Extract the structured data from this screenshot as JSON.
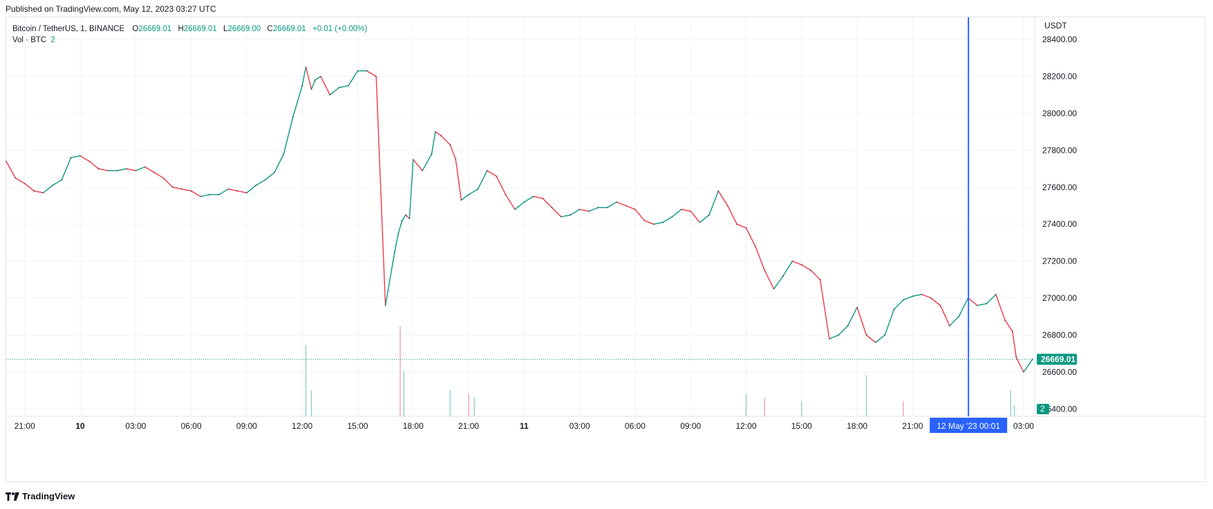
{
  "header": {
    "published": "Published on TradingView.com, May 12, 2023 03:27 UTC"
  },
  "legend": {
    "symbol": "Bitcoin / TetherUS, 1, BINANCE",
    "o_label": "O",
    "o_value": "26669.01",
    "h_label": "H",
    "h_value": "26669.01",
    "l_label": "L",
    "l_value": "26669.00",
    "c_label": "C",
    "c_value": "26669.01",
    "change": "+0.01 (+0.00%)",
    "vol_label": "Vol · BTC",
    "vol_value": "2"
  },
  "footer": {
    "brand": "TradingView"
  },
  "colors": {
    "up": "#089981",
    "down": "#f23645",
    "crosshair": "#2962ff",
    "price_line": "#089981"
  },
  "chart_data": {
    "type": "line",
    "title": "Bitcoin / TetherUS, 1, BINANCE",
    "currency_label": "USDT",
    "y_ticks": [
      26400,
      26600,
      26800,
      27000,
      27200,
      27400,
      27600,
      27800,
      28000,
      28200,
      28400
    ],
    "y_tick_labels": [
      "26400.00",
      "26600.00",
      "26800.00",
      "27000.00",
      "27200.00",
      "27400.00",
      "27600.00",
      "27800.00",
      "28000.00",
      "28200.00",
      "28400.00"
    ],
    "ylim": [
      26360,
      28520
    ],
    "x_tick_labels": [
      "21:00",
      "10",
      "03:00",
      "06:00",
      "09:00",
      "12:00",
      "15:00",
      "18:00",
      "21:00",
      "11",
      "03:00",
      "06:00",
      "09:00",
      "12:00",
      "15:00",
      "18:00",
      "21:00",
      "03:00"
    ],
    "x_tick_hours": [
      -3,
      0,
      3,
      6,
      9,
      12,
      15,
      18,
      21,
      24,
      27,
      30,
      33,
      36,
      39,
      42,
      45,
      51
    ],
    "xlim_hours": [
      -4.0,
      51.6
    ],
    "series": [
      {
        "hours": [
          -4.0,
          -3.5,
          -3.0,
          -2.5,
          -2.0,
          -1.5,
          -1.0,
          -0.5,
          0.0,
          0.5,
          1.0,
          1.5,
          2.0,
          2.5,
          3.0,
          3.5,
          4.0,
          4.5,
          5.0,
          5.5,
          6.0,
          6.5,
          7.0,
          7.5,
          8.0,
          8.5,
          9.0,
          9.5,
          10.0,
          10.5,
          11.0,
          11.5,
          12.0,
          12.2,
          12.5,
          12.7,
          13.0,
          13.5,
          14.0,
          14.5,
          15.0,
          15.5,
          16.0,
          16.5,
          17.0,
          17.2,
          17.4,
          17.6,
          17.8,
          18.0,
          18.5,
          19.0,
          19.2,
          19.5,
          20.0,
          20.3,
          20.6,
          21.0,
          21.5,
          22.0,
          22.5,
          23.0,
          23.5,
          24.0,
          24.5,
          25.0,
          25.5,
          26.0,
          26.5,
          27.0,
          27.5,
          28.0,
          28.5,
          29.0,
          29.5,
          30.0,
          30.5,
          31.0,
          31.5,
          32.0,
          32.5,
          33.0,
          33.5,
          34.0,
          34.5,
          35.0,
          35.5,
          36.0,
          36.5,
          37.0,
          37.5,
          38.0,
          38.5,
          39.0,
          39.5,
          40.0,
          40.5,
          41.0,
          41.5,
          42.0,
          42.5,
          43.0,
          43.5,
          44.0,
          44.5,
          45.0,
          45.5,
          46.0,
          46.5,
          47.0,
          47.5,
          48.0,
          48.5,
          49.0,
          49.5,
          50.0,
          50.4,
          50.6,
          51.0,
          51.5
        ],
        "close": [
          27740,
          27650,
          27620,
          27580,
          27570,
          27610,
          27640,
          27760,
          27770,
          27740,
          27700,
          27690,
          27690,
          27700,
          27690,
          27710,
          27680,
          27650,
          27600,
          27590,
          27580,
          27550,
          27560,
          27560,
          27590,
          27580,
          27570,
          27610,
          27640,
          27680,
          27780,
          27980,
          28150,
          28250,
          28130,
          28180,
          28200,
          28100,
          28140,
          28150,
          28230,
          28230,
          28200,
          26960,
          27250,
          27350,
          27420,
          27450,
          27430,
          27750,
          27690,
          27780,
          27900,
          27880,
          27830,
          27750,
          27530,
          27560,
          27590,
          27690,
          27660,
          27560,
          27480,
          27520,
          27550,
          27540,
          27490,
          27440,
          27450,
          27480,
          27470,
          27490,
          27490,
          27520,
          27500,
          27480,
          27420,
          27400,
          27410,
          27440,
          27480,
          27470,
          27410,
          27450,
          27580,
          27500,
          27400,
          27380,
          27280,
          27150,
          27050,
          27120,
          27200,
          27180,
          27150,
          27100,
          26780,
          26800,
          26850,
          26950,
          26800,
          26760,
          26800,
          26940,
          26990,
          27010,
          27020,
          27000,
          26960,
          26850,
          26900,
          27000,
          26960,
          26970,
          27020,
          26880,
          26820,
          26680,
          26600,
          26670
        ]
      }
    ],
    "volume_series": {
      "name": "Vol · BTC",
      "spikes_hours": [
        12.2,
        12.5,
        17.3,
        17.5,
        20.0,
        21.0,
        21.3,
        36.0,
        37.0,
        39.0,
        42.5,
        44.5,
        50.3,
        50.5
      ],
      "spikes_values": [
        95,
        35,
        120,
        60,
        35,
        30,
        25,
        30,
        25,
        20,
        55,
        20,
        35,
        15
      ]
    },
    "last_price": 26669.01,
    "last_price_label": "26669.01",
    "last_volume_label": "2",
    "crosshair_label": "12 May '23   00:01",
    "crosshair_hour": 48.02
  }
}
